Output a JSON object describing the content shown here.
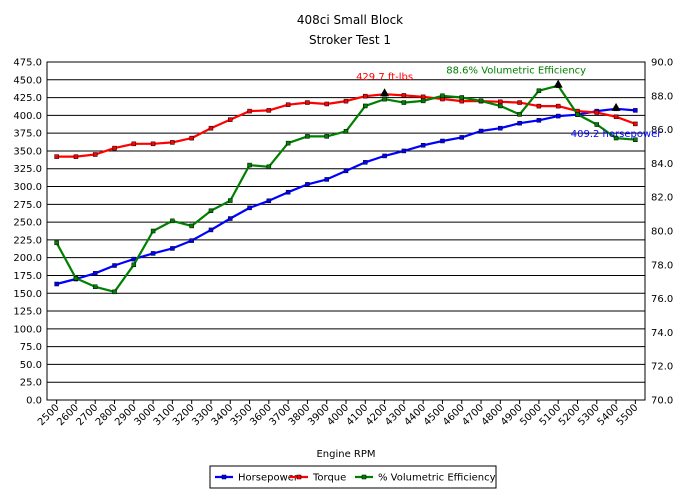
{
  "chart_data": {
    "type": "line",
    "title": "408ci Small Block",
    "subtitle": "Stroker Test 1",
    "xlabel": "Engine RPM",
    "x": [
      2500,
      2600,
      2700,
      2800,
      2900,
      3000,
      3100,
      3200,
      3300,
      3400,
      3500,
      3600,
      3700,
      3800,
      3900,
      4000,
      4100,
      4200,
      4300,
      4400,
      4500,
      4600,
      4700,
      4800,
      4900,
      5000,
      5100,
      5200,
      5300,
      5400,
      5500
    ],
    "y_left_lim": [
      0,
      475
    ],
    "y_left_ticks": [
      "0.0",
      "25.0",
      "50.0",
      "75.0",
      "100.0",
      "125.0",
      "150.0",
      "175.0",
      "200.0",
      "225.0",
      "250.0",
      "275.0",
      "300.0",
      "325.0",
      "350.0",
      "375.0",
      "400.0",
      "425.0",
      "450.0",
      "475.0"
    ],
    "y_right_lim": [
      70,
      90
    ],
    "y_right_ticks": [
      "70.0",
      "72.0",
      "74.0",
      "76.0",
      "78.0",
      "80.0",
      "82.0",
      "84.0",
      "86.0",
      "88.0",
      "90.0"
    ],
    "grid": "horizontal",
    "legend_position": "bottom",
    "series": [
      {
        "name": "Horsepower",
        "axis": "left",
        "color": "#0000ff",
        "values": [
          163,
          170,
          178,
          189,
          198,
          206,
          213,
          224,
          239,
          255,
          270,
          280,
          292,
          303,
          310,
          322,
          334,
          343,
          350,
          358,
          364,
          369,
          378,
          382,
          389,
          393,
          399,
          401,
          406,
          409.2,
          407
        ]
      },
      {
        "name": "Torque",
        "axis": "left",
        "color": "#ff0000",
        "values": [
          342,
          342,
          345,
          354,
          360,
          360,
          362,
          368,
          382,
          394,
          406,
          407,
          415,
          418,
          416,
          420,
          427,
          429.7,
          428,
          426,
          423,
          420,
          420,
          419,
          418,
          413,
          413,
          406,
          404,
          398,
          388
        ]
      },
      {
        "name": "% Volumetric Efficiency",
        "axis": "right",
        "color": "#008000",
        "values": [
          79.3,
          77.2,
          76.7,
          76.4,
          78.0,
          80.0,
          80.6,
          80.3,
          81.2,
          81.8,
          83.9,
          83.8,
          85.2,
          85.6,
          85.6,
          85.9,
          87.4,
          87.8,
          87.6,
          87.7,
          88.0,
          87.9,
          87.7,
          87.4,
          86.9,
          88.3,
          88.6,
          86.9,
          86.3,
          85.5,
          85.4
        ]
      }
    ],
    "annotations": [
      {
        "text": "429.7 ft-lbs",
        "color": "#ff0000",
        "x": 4200,
        "series": "Torque"
      },
      {
        "text": "88.6% Volumetric Efficiency",
        "color": "#008000",
        "x": 5100,
        "series": "% Volumetric Efficiency"
      },
      {
        "text": "409.2 horsepower",
        "color": "#0000ff",
        "x": 5400,
        "series": "Horsepower"
      }
    ]
  }
}
